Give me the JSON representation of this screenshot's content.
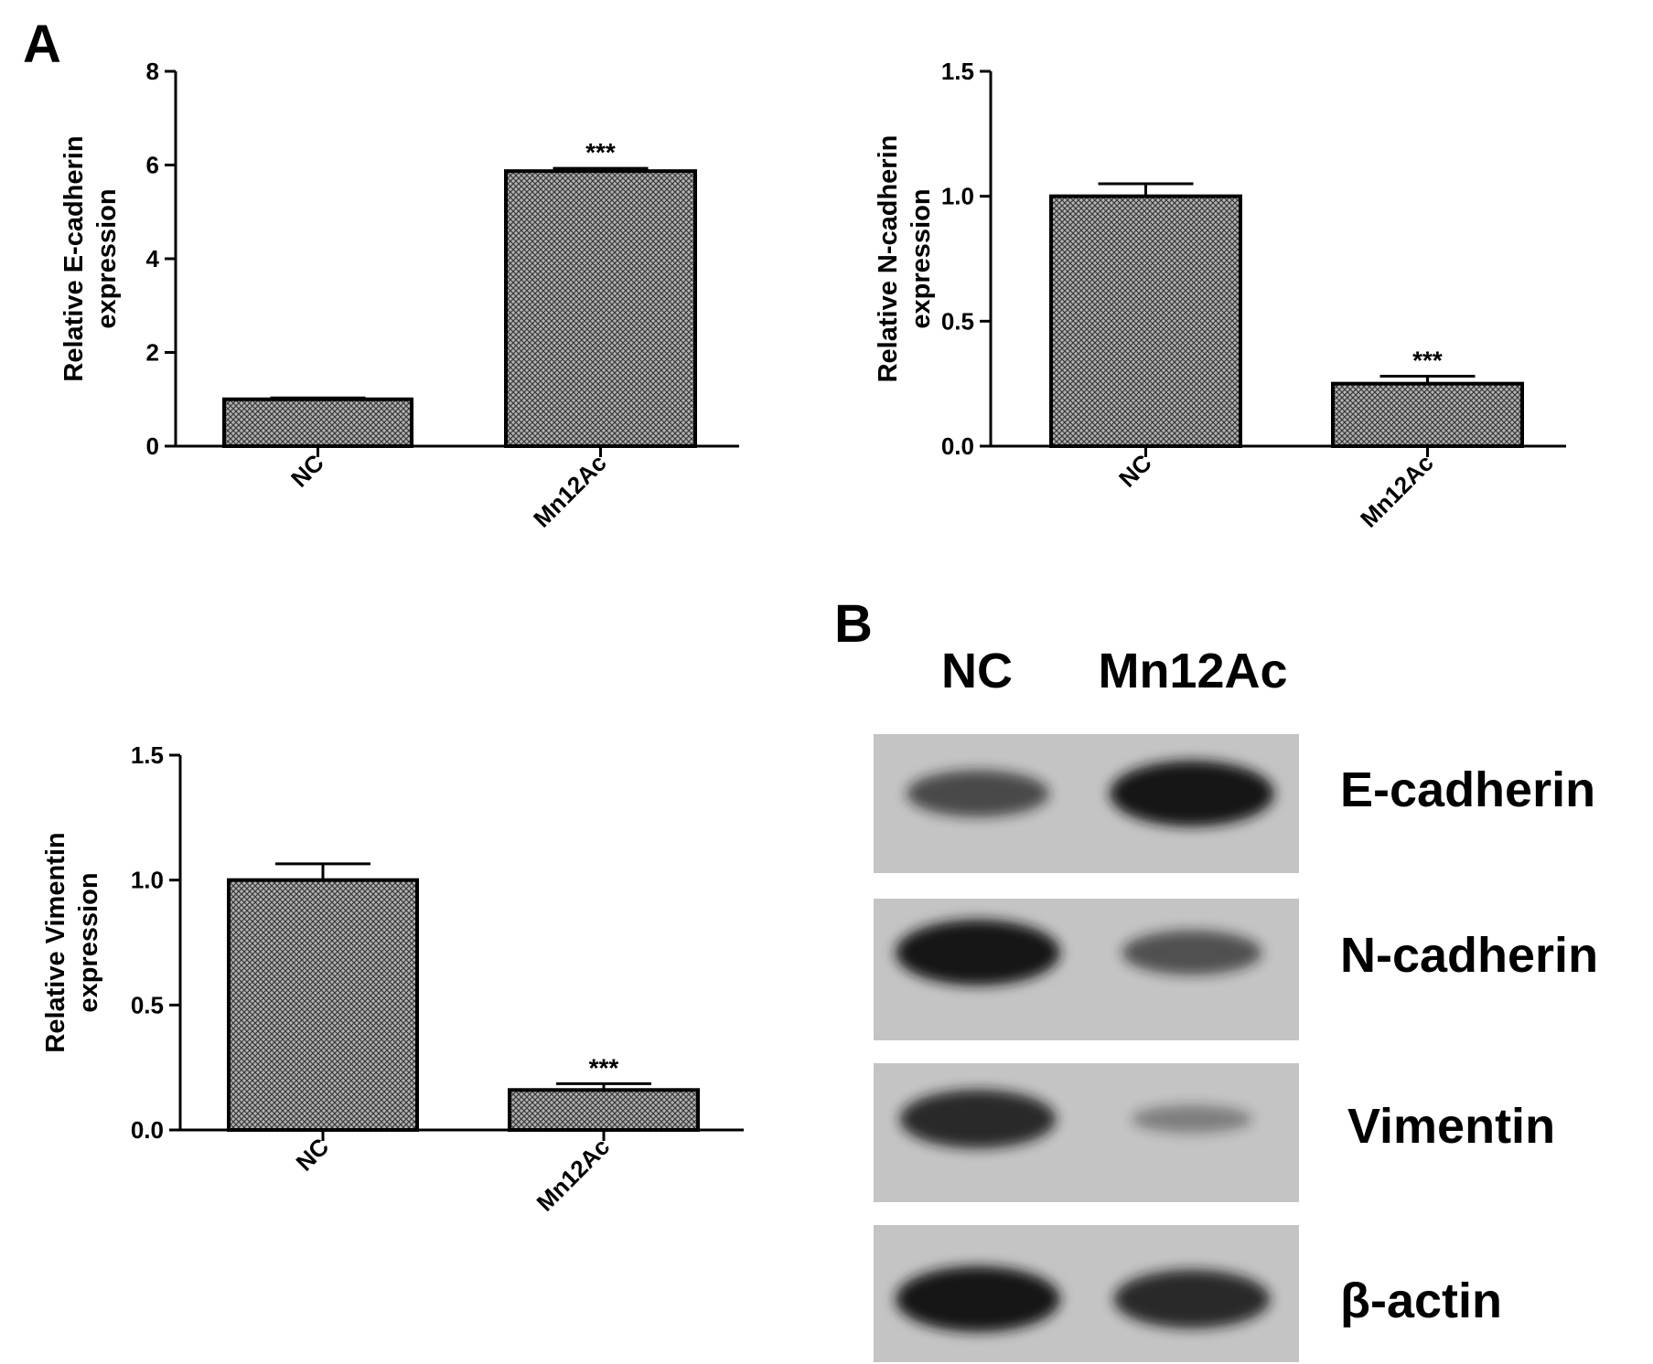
{
  "panels": {
    "a_label": "A",
    "b_label": "B"
  },
  "chart_data": [
    {
      "type": "bar",
      "categories": [
        "NC",
        "Mn12Ac"
      ],
      "values": [
        1.0,
        5.87
      ],
      "errors": [
        0.03,
        0.06
      ],
      "annotations": [
        "",
        "***"
      ],
      "ylabel_lines": [
        "Relative E-cadherin",
        "expression"
      ],
      "ylim": [
        0,
        8
      ],
      "yticks": [
        0,
        2,
        4,
        6,
        8
      ],
      "ytick_labels": [
        "0",
        "2",
        "4",
        "6",
        "8"
      ],
      "grid": false,
      "fill_pattern": "crosshatch"
    },
    {
      "type": "bar",
      "categories": [
        "NC",
        "Mn12Ac"
      ],
      "values": [
        1.0,
        0.25
      ],
      "errors": [
        0.05,
        0.03
      ],
      "annotations": [
        "",
        "***"
      ],
      "ylabel_lines": [
        "Relative N-cadherin",
        "expression"
      ],
      "ylim": [
        0,
        1.5
      ],
      "yticks": [
        0,
        0.5,
        1.0,
        1.5
      ],
      "ytick_labels": [
        "0.0",
        "0.5",
        "1.0",
        "1.5"
      ],
      "grid": false,
      "fill_pattern": "crosshatch"
    },
    {
      "type": "bar",
      "categories": [
        "NC",
        "Mn12Ac"
      ],
      "values": [
        1.0,
        0.16
      ],
      "errors": [
        0.065,
        0.025
      ],
      "annotations": [
        "",
        "***"
      ],
      "ylabel_lines": [
        "Relative Vimentin",
        "expression"
      ],
      "ylim": [
        0,
        1.5
      ],
      "yticks": [
        0,
        0.5,
        1.0,
        1.5
      ],
      "ytick_labels": [
        "0.0",
        "0.5",
        "1.0",
        "1.5"
      ],
      "grid": false,
      "fill_pattern": "crosshatch"
    }
  ],
  "western_blot": {
    "lane_labels": [
      "NC",
      "Mn12Ac"
    ],
    "rows": [
      {
        "label": "E-cadherin",
        "band_intensity": [
          0.6,
          1.0
        ]
      },
      {
        "label": "N-cadherin",
        "band_intensity": [
          1.0,
          0.55
        ]
      },
      {
        "label": "Vimentin",
        "band_intensity": [
          0.85,
          0.2
        ]
      },
      {
        "label": "β-actin",
        "band_intensity": [
          1.0,
          0.85
        ]
      }
    ]
  },
  "colors": {
    "ink": "#000000",
    "bar_fill": "#9a9a9a",
    "blot_bg": "#c4c4c4",
    "band": "#141414"
  }
}
